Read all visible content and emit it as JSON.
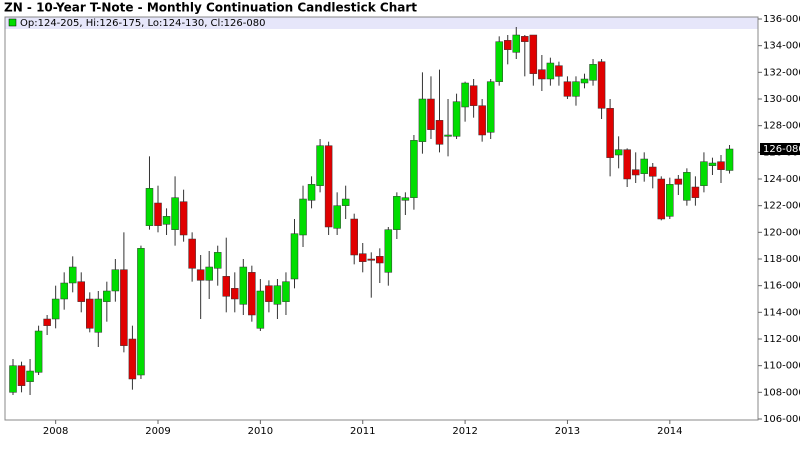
{
  "chart_data": {
    "type": "candlestick",
    "title": "ZN - 10-Year T-Note - Monthly Continuation Candlestick Chart",
    "legend_text": "Op:124-205, Hi:126-175, Lo:124-130, Cl:126-080",
    "up_color": "#00dd00",
    "down_color": "#e00000",
    "categories": [
      null,
      null,
      null,
      null,
      null,
      "2008",
      null,
      null,
      null,
      null,
      null,
      null,
      null,
      null,
      null,
      null,
      null,
      "2009",
      null,
      null,
      null,
      null,
      null,
      null,
      null,
      null,
      null,
      null,
      null,
      "2010",
      null,
      null,
      null,
      null,
      null,
      null,
      null,
      null,
      null,
      null,
      null,
      "2011",
      null,
      null,
      null,
      null,
      null,
      null,
      null,
      null,
      null,
      null,
      null,
      "2012",
      null,
      null,
      null,
      null,
      null,
      null,
      null,
      null,
      null,
      null,
      null,
      "2013",
      null,
      null,
      null,
      null,
      null,
      null,
      null,
      null,
      null,
      null,
      null,
      "2014",
      null,
      null,
      null,
      null,
      null,
      null,
      null
    ],
    "open": [
      108,
      110,
      108.8,
      109.5,
      113.5,
      113.5,
      115,
      116.2,
      116.3,
      115,
      112.5,
      114.8,
      115.6,
      117.2,
      112,
      109.3,
      120.5,
      122.2,
      120.6,
      120.2,
      122.3,
      119.5,
      117.2,
      116.4,
      117.3,
      116.7,
      115.8,
      114.6,
      117,
      112.8,
      116,
      114.6,
      114.8,
      116.5,
      119.8,
      122.4,
      123.5,
      126.5,
      120.3,
      122,
      121,
      118.4,
      118,
      118.2,
      117,
      120.2,
      122.4,
      122.6,
      126.8,
      130,
      128.4,
      127.2,
      127.2,
      129.4,
      131,
      129.5,
      127.5,
      131.3,
      134.4,
      133.5,
      134.7,
      134.8,
      132.2,
      131.5,
      132.5,
      131.3,
      130.2,
      131.2,
      131.4,
      132.8,
      129.3,
      125.8,
      126.2,
      124.7,
      124.4,
      124.9,
      124,
      121.2,
      124,
      122.4,
      123.4,
      123.5,
      125,
      125.3,
      124.64
    ],
    "high": [
      110.5,
      110.3,
      110.5,
      113,
      113.8,
      116,
      117,
      118.2,
      117,
      115.5,
      115.6,
      116.3,
      118,
      120,
      113,
      119,
      125.7,
      123.5,
      121.8,
      124.2,
      123.2,
      120,
      118.3,
      118.6,
      119,
      119.6,
      117,
      118,
      117.5,
      116.5,
      116.4,
      116.5,
      117,
      121,
      123.5,
      124.2,
      127,
      126.8,
      123,
      123.5,
      121.4,
      119.2,
      118.5,
      118.8,
      120.4,
      123,
      123,
      127.3,
      132,
      131.7,
      132.2,
      130,
      130.4,
      131.3,
      131.5,
      130,
      131.5,
      134.7,
      134.8,
      135.4,
      134.8,
      134.8,
      133.3,
      133.1,
      132.8,
      131.7,
      131.7,
      131.9,
      133,
      133,
      130,
      127.2,
      126.3,
      126,
      126,
      125.2,
      124.2,
      124.1,
      124.3,
      124.8,
      124.2,
      126,
      125.6,
      125.8,
      126.55
    ],
    "low": [
      107.8,
      108,
      107.8,
      109.3,
      112.3,
      112.8,
      114.2,
      115.5,
      114,
      112.5,
      111.4,
      113.3,
      114.8,
      111,
      108.2,
      109,
      120.2,
      120,
      119.8,
      119,
      119.3,
      116.3,
      113.5,
      115,
      116,
      114,
      114,
      113.8,
      113.3,
      112.6,
      114,
      113.5,
      113.8,
      115.8,
      118.9,
      121.8,
      123,
      119.8,
      119.8,
      121,
      117.6,
      117,
      115.1,
      116.2,
      116,
      119.5,
      121.3,
      121.7,
      125.9,
      127,
      126,
      125.7,
      127,
      128.3,
      128.6,
      126.8,
      127,
      131,
      132.6,
      133,
      131.7,
      131,
      130.6,
      131,
      131,
      130,
      129.5,
      130.8,
      131,
      128.5,
      124.2,
      124.8,
      123.4,
      123.7,
      123.8,
      123.3,
      120.9,
      121,
      122.8,
      122,
      122,
      123,
      124.3,
      123.7,
      124.41
    ],
    "close": [
      110,
      108.5,
      109.6,
      112.6,
      113,
      115,
      116.2,
      117.4,
      114.8,
      112.8,
      115,
      115.6,
      117.2,
      111.5,
      109,
      118.8,
      123.3,
      120.5,
      121.2,
      122.6,
      119.8,
      117.3,
      116.4,
      117.4,
      118.5,
      115.2,
      115,
      117.4,
      113.8,
      115.6,
      114.8,
      116,
      116.3,
      119.9,
      122.5,
      123.6,
      126.5,
      120.4,
      122,
      122.5,
      118.3,
      117.8,
      117.9,
      117.7,
      120.2,
      122.7,
      122.6,
      126.9,
      130,
      127.7,
      126.6,
      127.3,
      129.8,
      131.2,
      129.5,
      127.3,
      131.3,
      134.3,
      133.7,
      134.8,
      134.3,
      131.9,
      131.5,
      132.7,
      131.7,
      130.2,
      131.3,
      131.5,
      132.6,
      129.3,
      125.6,
      126.2,
      124,
      124.3,
      125.5,
      124.2,
      121,
      123.6,
      123.6,
      124.5,
      122.6,
      125.3,
      125.2,
      124.7,
      126.25
    ],
    "ylim": [
      106,
      136
    ],
    "yticks": [
      {
        "value": 106,
        "label": "106-000"
      },
      {
        "value": 108,
        "label": "108-000"
      },
      {
        "value": 110,
        "label": "110-000"
      },
      {
        "value": 112,
        "label": "112-000"
      },
      {
        "value": 114,
        "label": "114-000"
      },
      {
        "value": 116,
        "label": "116-000"
      },
      {
        "value": 118,
        "label": "118-000"
      },
      {
        "value": 120,
        "label": "120-000"
      },
      {
        "value": 122,
        "label": "122-000"
      },
      {
        "value": 124,
        "label": "124-000"
      },
      {
        "value": 126,
        "label": "126-000"
      },
      {
        "value": 128,
        "label": "128-000"
      },
      {
        "value": 130,
        "label": "130-000"
      },
      {
        "value": 132,
        "label": "132-000"
      },
      {
        "value": 134,
        "label": "134-000"
      },
      {
        "value": 136,
        "label": "136-000"
      }
    ],
    "last_price": {
      "value": 126.25,
      "label": "126-080"
    }
  }
}
